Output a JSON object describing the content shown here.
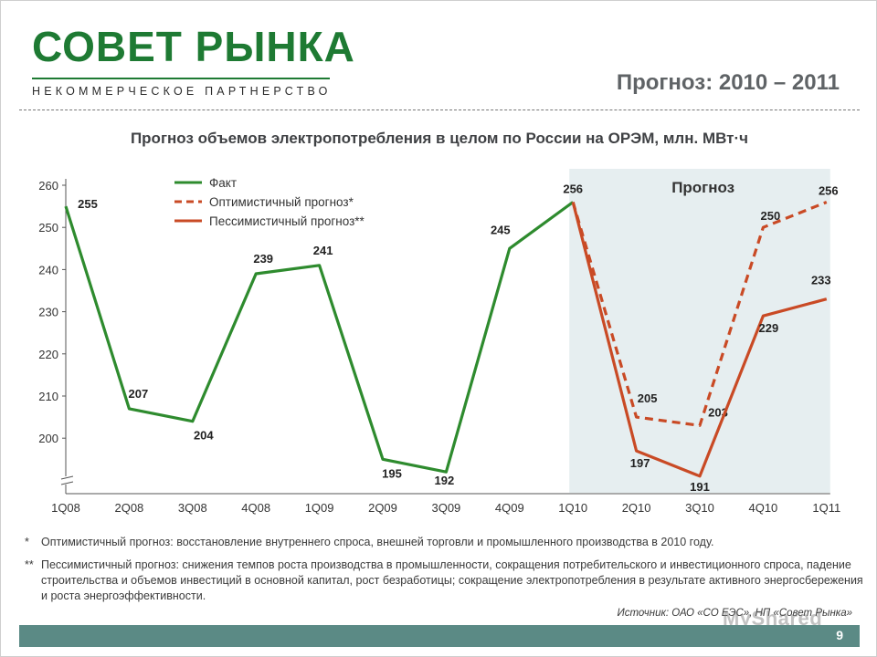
{
  "header": {
    "logo_title": "СОВЕТ РЫНКА",
    "logo_subtitle": "НЕКОММЕРЧЕСКОЕ ПАРТНЕРСТВО",
    "title": "Прогноз: 2010 – 2011"
  },
  "chart_data": {
    "type": "line",
    "title": "Прогноз объемов электропотребления в целом по России на ОРЭМ, млн. МВт·ч",
    "categories": [
      "1Q08",
      "2Q08",
      "3Q08",
      "4Q08",
      "1Q09",
      "2Q09",
      "3Q09",
      "4Q09",
      "1Q10",
      "2Q10",
      "3Q10",
      "4Q10",
      "1Q11"
    ],
    "yticks": [
      200,
      210,
      220,
      230,
      240,
      250,
      260
    ],
    "ylim": [
      190,
      262
    ],
    "axis_break": true,
    "forecast_region_label": "Прогноз",
    "forecast_region_range": [
      "1Q10",
      "1Q11"
    ],
    "legend_position": "top-left",
    "series": [
      {
        "name": "Факт",
        "style": "solid",
        "color": "#2e8b2e",
        "values": [
          255,
          207,
          204,
          239,
          241,
          195,
          192,
          245,
          256,
          null,
          null,
          null,
          null
        ],
        "labels": [
          "255",
          "207",
          "204",
          "239",
          "241",
          "195",
          "192",
          "245",
          "256",
          "",
          "",
          "",
          ""
        ]
      },
      {
        "name": "Оптимистичный прогноз*",
        "style": "dashed",
        "color": "#c94a25",
        "values": [
          null,
          null,
          null,
          null,
          null,
          null,
          null,
          null,
          256,
          205,
          203,
          250,
          256
        ],
        "labels": [
          "",
          "",
          "",
          "",
          "",
          "",
          "",
          "",
          "",
          "205",
          "203",
          "250",
          "256"
        ]
      },
      {
        "name": "Пессимистичный прогноз**",
        "style": "solid",
        "color": "#c94a25",
        "values": [
          null,
          null,
          null,
          null,
          null,
          null,
          null,
          null,
          256,
          197,
          191,
          229,
          233
        ],
        "labels": [
          "",
          "",
          "",
          "",
          "",
          "",
          "",
          "",
          "",
          "197",
          "191",
          "229",
          "233"
        ]
      }
    ]
  },
  "footnotes": [
    {
      "mark": "*",
      "text": "Оптимистичный прогноз: восстановление внутреннего спроса, внешней торговли и промышленного производства в 2010 году."
    },
    {
      "mark": "**",
      "text": "Пессимистичный прогноз: снижения темпов роста производства в промышленности, сокращения потребительского и инвестиционного спроса, падение строительства и объемов инвестиций в основной капитал, рост безработицы; сокращение электропотребления в результате активного энергосбережения и роста энергоэффективности."
    }
  ],
  "source": "Источник: ОАО «СО ЕЭС», НП «Совет Рынка»",
  "page_number": "9",
  "watermark": "MyShared"
}
